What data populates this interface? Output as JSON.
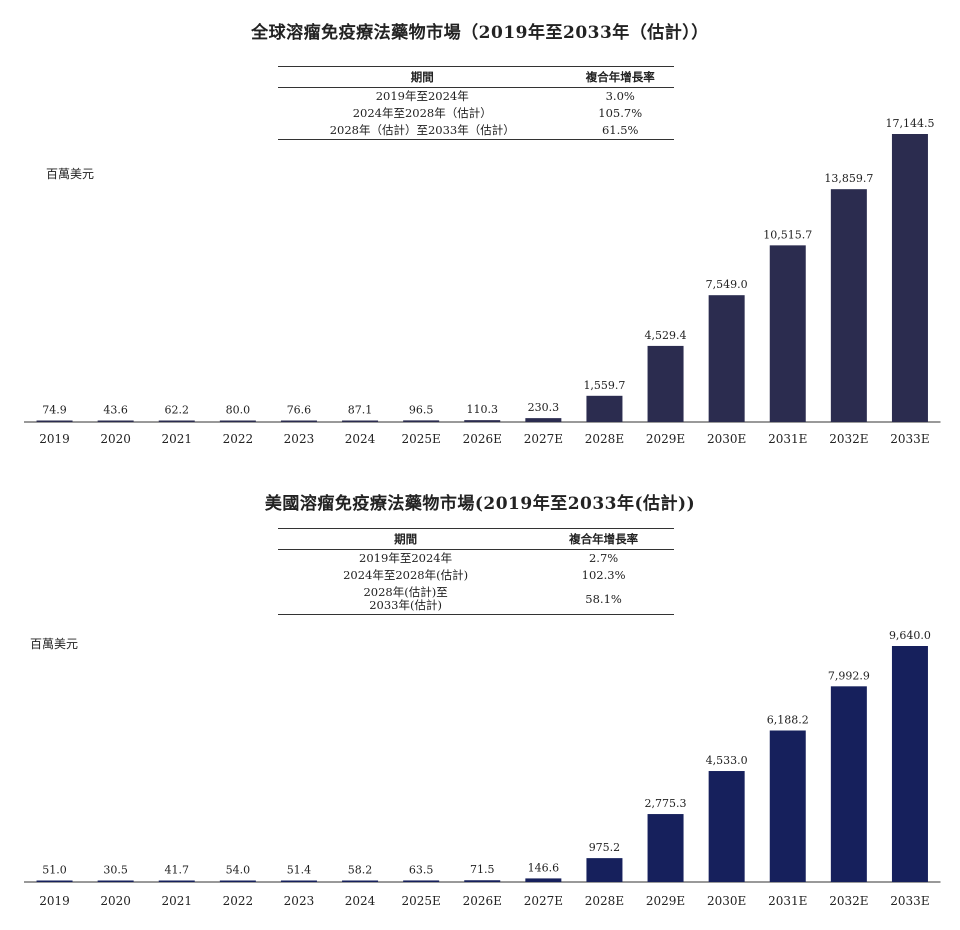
{
  "chart_data": [
    {
      "type": "bar",
      "title": "全球溶瘤免疫療法藥物市場（2019年至2033年（估計））",
      "ylabel": "百萬美元",
      "categories": [
        "2019",
        "2020",
        "2021",
        "2022",
        "2023",
        "2024",
        "2025E",
        "2026E",
        "2027E",
        "2028E",
        "2029E",
        "2030E",
        "2031E",
        "2032E",
        "2033E"
      ],
      "values": [
        74.9,
        43.6,
        62.2,
        80.0,
        76.6,
        87.1,
        96.5,
        110.3,
        230.3,
        1559.7,
        4529.4,
        7549.0,
        10515.7,
        13859.7,
        17144.5
      ],
      "value_labels": [
        "74.9",
        "43.6",
        "62.2",
        "80.0",
        "76.6",
        "87.1",
        "96.5",
        "110.3",
        "230.3",
        "1,559.7",
        "4,529.4",
        "7,549.0",
        "10,515.7",
        "13,859.7",
        "17,144.5"
      ],
      "ylim": [
        0,
        17144.5
      ],
      "bar_color": "#2b2c4f",
      "cagr_table": {
        "headers": [
          "期間",
          "複合年增長率"
        ],
        "rows": [
          {
            "period": "2019年至2024年",
            "rate": "3.0%"
          },
          {
            "period": "2024年至2028年（估計）",
            "rate": "105.7%"
          },
          {
            "period": "2028年（估計）至2033年（估計）",
            "rate": "61.5%"
          }
        ]
      }
    },
    {
      "type": "bar",
      "title": "美國溶瘤免疫療法藥物市場(2019年至2033年(估計))",
      "ylabel": "百萬美元",
      "categories": [
        "2019",
        "2020",
        "2021",
        "2022",
        "2023",
        "2024",
        "2025E",
        "2026E",
        "2027E",
        "2028E",
        "2029E",
        "2030E",
        "2031E",
        "2032E",
        "2033E"
      ],
      "values": [
        51.0,
        30.5,
        41.7,
        54.0,
        51.4,
        58.2,
        63.5,
        71.5,
        146.6,
        975.2,
        2775.3,
        4533.0,
        6188.2,
        7992.9,
        9640.0
      ],
      "value_labels": [
        "51.0",
        "30.5",
        "41.7",
        "54.0",
        "51.4",
        "58.2",
        "63.5",
        "71.5",
        "146.6",
        "975.2",
        "2,775.3",
        "4,533.0",
        "6,188.2",
        "7,992.9",
        "9,640.0"
      ],
      "ylim": [
        0,
        9640.0
      ],
      "bar_color": "#16205c",
      "cagr_table": {
        "headers": [
          "期間",
          "複合年增長率"
        ],
        "rows": [
          {
            "period": "2019年至2024年",
            "rate": "2.7%"
          },
          {
            "period": "2024年至2028年(估計)",
            "rate": "102.3%"
          },
          {
            "period": "2028年(估計)至\n2033年(估計)",
            "rate": "58.1%"
          }
        ]
      }
    }
  ]
}
